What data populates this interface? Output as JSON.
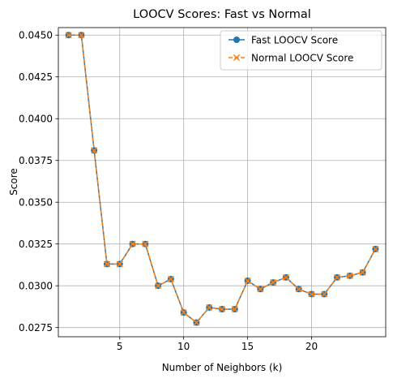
{
  "chart_data": {
    "type": "line",
    "title": "LOOCV Scores: Fast vs Normal",
    "xlabel": "Number of Neighbors (k)",
    "ylabel": "Score",
    "xlim": [
      0.2,
      25.8
    ],
    "ylim": [
      0.02695,
      0.04545
    ],
    "xticks": [
      5,
      10,
      15,
      20
    ],
    "xtick_labels": [
      "5",
      "10",
      "15",
      "20"
    ],
    "yticks": [
      0.0275,
      0.03,
      0.0325,
      0.035,
      0.0375,
      0.04,
      0.0425,
      0.045
    ],
    "ytick_labels": [
      "0.0275",
      "0.0300",
      "0.0325",
      "0.0350",
      "0.0375",
      "0.0400",
      "0.0425",
      "0.0450"
    ],
    "grid": true,
    "legend_position": "top-right",
    "x": [
      1,
      2,
      3,
      4,
      5,
      6,
      7,
      8,
      9,
      10,
      11,
      12,
      13,
      14,
      15,
      16,
      17,
      18,
      19,
      20,
      21,
      22,
      23,
      24,
      25
    ],
    "series": [
      {
        "name": "Fast LOOCV Score",
        "color": "#1f77b4",
        "marker": "circle",
        "line_style": "solid",
        "values": [
          0.045,
          0.045,
          0.0381,
          0.0313,
          0.0313,
          0.0325,
          0.0325,
          0.03,
          0.0304,
          0.0284,
          0.0278,
          0.0287,
          0.0286,
          0.0286,
          0.0303,
          0.0298,
          0.0302,
          0.0305,
          0.0298,
          0.0295,
          0.0295,
          0.0305,
          0.0306,
          0.0308,
          0.0322
        ]
      },
      {
        "name": "Normal LOOCV Score",
        "color": "#ff7f0e",
        "marker": "x",
        "line_style": "dashed",
        "values": [
          0.045,
          0.045,
          0.0381,
          0.0313,
          0.0313,
          0.0325,
          0.0325,
          0.03,
          0.0304,
          0.0284,
          0.0278,
          0.0287,
          0.0286,
          0.0286,
          0.0303,
          0.0298,
          0.0302,
          0.0305,
          0.0298,
          0.0295,
          0.0295,
          0.0305,
          0.0306,
          0.0308,
          0.0322
        ]
      }
    ]
  }
}
